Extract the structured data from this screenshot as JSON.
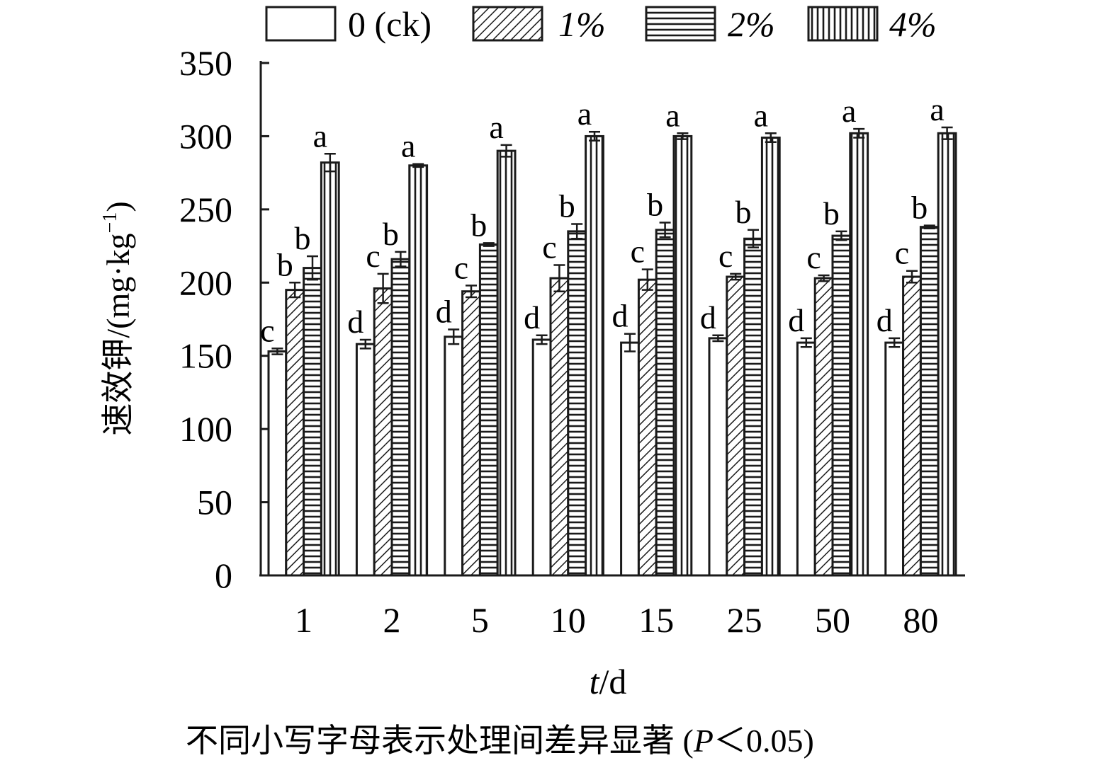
{
  "chart_data": {
    "type": "bar",
    "xlabel_italic": "t",
    "xlabel_rest": "/d",
    "ylabel_text": "速效钾/(mg·kg",
    "ylabel_sup": "−1",
    "ylabel_close": ")",
    "ylim": [
      0,
      350
    ],
    "yticks": [
      0,
      50,
      100,
      150,
      200,
      250,
      300,
      350
    ],
    "categories": [
      "1",
      "2",
      "5",
      "10",
      "15",
      "25",
      "50",
      "80"
    ],
    "legend_position": "top",
    "grid": false,
    "series": [
      {
        "name": "0 (ck)",
        "pattern": "none",
        "values": [
          153,
          158,
          163,
          161,
          159,
          162,
          159,
          159
        ],
        "errors": [
          2,
          3,
          5,
          3,
          6,
          2,
          3,
          3
        ],
        "letters": [
          "c",
          "d",
          "d",
          "d",
          "d",
          "d",
          "d",
          "d"
        ]
      },
      {
        "name": "1%",
        "pattern": "diagonal",
        "values": [
          195,
          196,
          194,
          203,
          202,
          204,
          203,
          204
        ],
        "errors": [
          5,
          10,
          4,
          9,
          7,
          2,
          2,
          4
        ],
        "letters": [
          "b",
          "c",
          "c",
          "c",
          "c",
          "c",
          "c",
          "c"
        ]
      },
      {
        "name": "2%",
        "pattern": "horizontal",
        "values": [
          210,
          216,
          226,
          235,
          236,
          230,
          232,
          238
        ],
        "errors": [
          8,
          5,
          1,
          5,
          5,
          6,
          3,
          1
        ],
        "letters": [
          "b",
          "b",
          "b",
          "b",
          "b",
          "b",
          "b",
          "b"
        ]
      },
      {
        "name": "4%",
        "pattern": "vertical",
        "values": [
          282,
          280,
          290,
          300,
          300,
          299,
          302,
          302
        ],
        "errors": [
          6,
          1,
          4,
          3,
          2,
          3,
          3,
          4
        ],
        "letters": [
          "a",
          "a",
          "a",
          "a",
          "a",
          "a",
          "a",
          "a"
        ]
      }
    ]
  },
  "footnote": {
    "text": "不同小写字母表示处理间差异显著 (",
    "italic": "P",
    "rest": "＜0.05)"
  },
  "colors": {
    "ink": "#1a1a1a",
    "fill": "#ffffff"
  }
}
